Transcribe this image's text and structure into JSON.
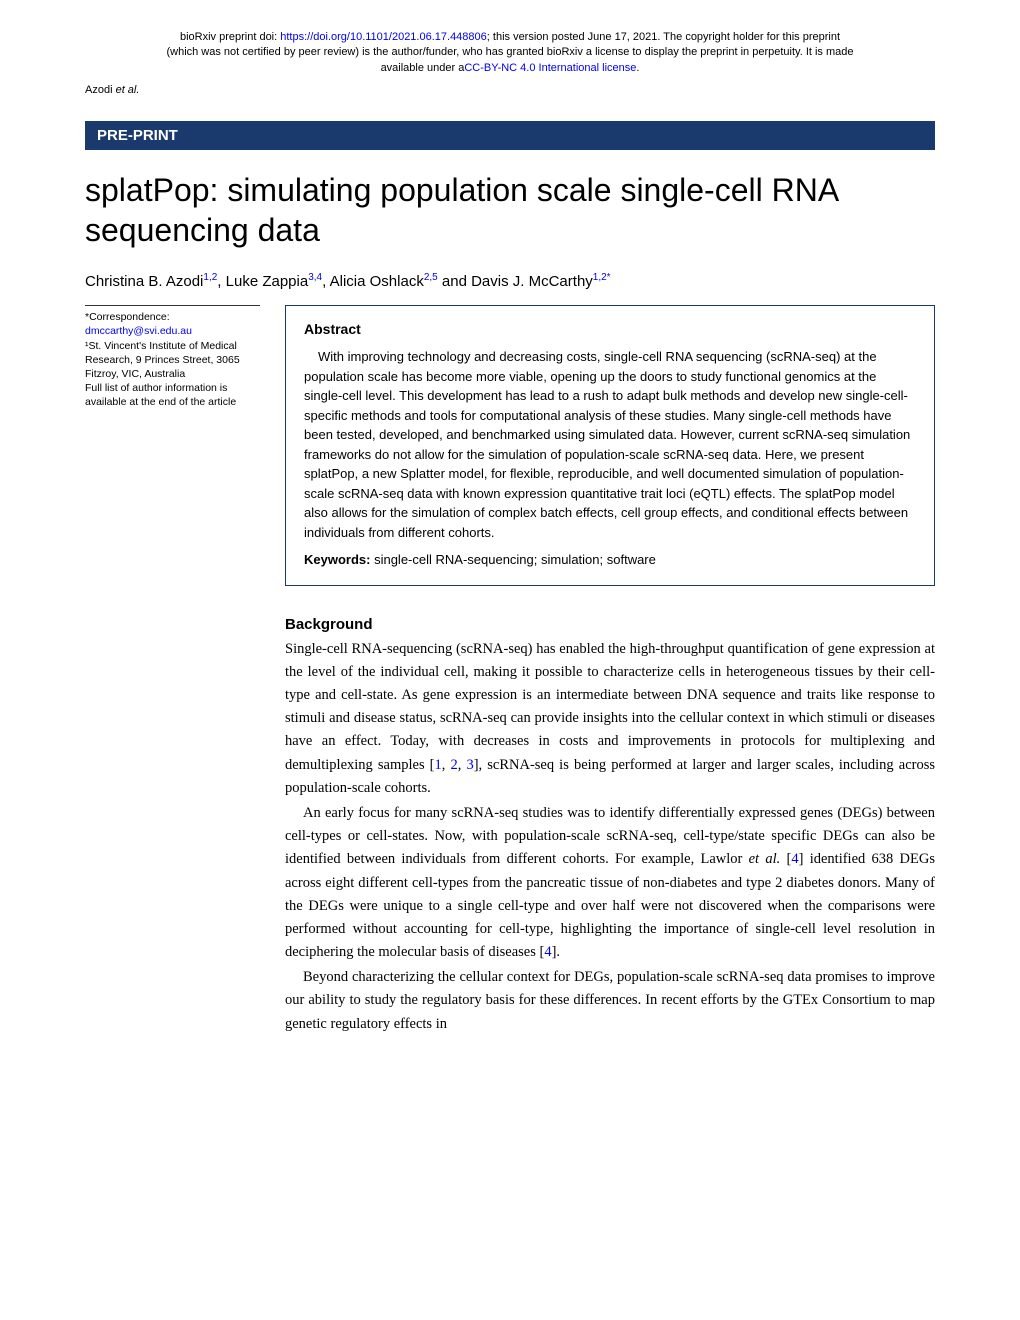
{
  "preprint_header": {
    "line1_prefix": "bioRxiv preprint doi: ",
    "doi_url": "https://doi.org/10.1101/2021.06.17.448806",
    "line1_suffix": "; this version posted June 17, 2021. The copyright holder for this preprint",
    "line2": "(which was not certified by peer review) is the author/funder, who has granted bioRxiv a license to display the preprint in perpetuity. It is made",
    "line3_prefix": "available under a",
    "license_text": "CC-BY-NC 4.0 International license",
    "line3_suffix": "."
  },
  "running_head": {
    "authors": "Azodi ",
    "etal": "et al."
  },
  "banner": "PRE-PRINT",
  "title": "splatPop: simulating population scale single-cell RNA sequencing data",
  "authors": {
    "a1": "Christina B. Azodi",
    "a1_aff": "1,2",
    "a2": ", Luke Zappia",
    "a2_aff": "3,4",
    "a3": ", Alicia Oshlack",
    "a3_aff": "2,5",
    "a4": " and Davis J. McCarthy",
    "a4_aff": "1,2*"
  },
  "sidebar": {
    "corr_label": "*Correspondence:",
    "email": "dmccarthy@svi.edu.au",
    "affil": "¹St. Vincent's Institute of Medical Research, 9 Princes Street, 3065 Fitzroy, VIC, Australia",
    "note": "Full list of author information is available at the end of the article"
  },
  "abstract": {
    "heading": "Abstract",
    "text": "With improving technology and decreasing costs, single-cell RNA sequencing (scRNA-seq) at the population scale has become more viable, opening up the doors to study functional genomics at the single-cell level. This development has lead to a rush to adapt bulk methods and develop new single-cell-specific methods and tools for computational analysis of these studies. Many single-cell methods have been tested, developed, and benchmarked using simulated data. However, current scRNA-seq simulation frameworks do not allow for the simulation of population-scale scRNA-seq data. Here, we present splatPop, a new Splatter model, for flexible, reproducible, and well documented simulation of population-scale scRNA-seq data with known expression quantitative trait loci (eQTL) effects. The splatPop model also allows for the simulation of complex batch effects, cell group effects, and conditional effects between individuals from different cohorts.",
    "keywords_label": "Keywords: ",
    "keywords": "single-cell RNA-sequencing; simulation; software"
  },
  "background": {
    "heading": "Background",
    "p1_a": "Single-cell RNA-sequencing (scRNA-seq) has enabled the high-throughput quantification of gene expression at the level of the individual cell, making it possible to characterize cells in heterogeneous tissues by their cell-type and cell-state. As gene expression is an intermediate between DNA sequence and traits like response to stimuli and disease status, scRNA-seq can provide insights into the cellular context in which stimuli or diseases have an effect. Today, with decreases in costs and improvements in protocols for multiplexing and demultiplexing samples [",
    "p1_r1": "1",
    "p1_b": ", ",
    "p1_r2": "2",
    "p1_c": ", ",
    "p1_r3": "3",
    "p1_d": "], scRNA-seq is being performed at larger and larger scales, including across population-scale cohorts.",
    "p2_a": "An early focus for many scRNA-seq studies was to identify differentially expressed genes (DEGs) between cell-types or cell-states. Now, with population-scale scRNA-seq, cell-type/state specific DEGs can also be identified between individuals from different cohorts. For example, Lawlor ",
    "p2_etal": "et al.",
    "p2_b": " [",
    "p2_r4": "4",
    "p2_c": "] identified 638 DEGs across eight different cell-types from the pancreatic tissue of non-diabetes and type 2 diabetes donors. Many of the DEGs were unique to a single cell-type and over half were not discovered when the comparisons were performed without accounting for cell-type, highlighting the importance of single-cell level resolution in deciphering the molecular basis of diseases [",
    "p2_r4b": "4",
    "p2_d": "].",
    "p3": "Beyond characterizing the cellular context for DEGs, population-scale scRNA-seq data promises to improve our ability to study the regulatory basis for these differences. In recent efforts by the GTEx Consortium to map genetic regulatory effects in"
  },
  "colors": {
    "link": "#0000ee",
    "banner_bg": "#1a3a6e",
    "text": "#000000"
  }
}
